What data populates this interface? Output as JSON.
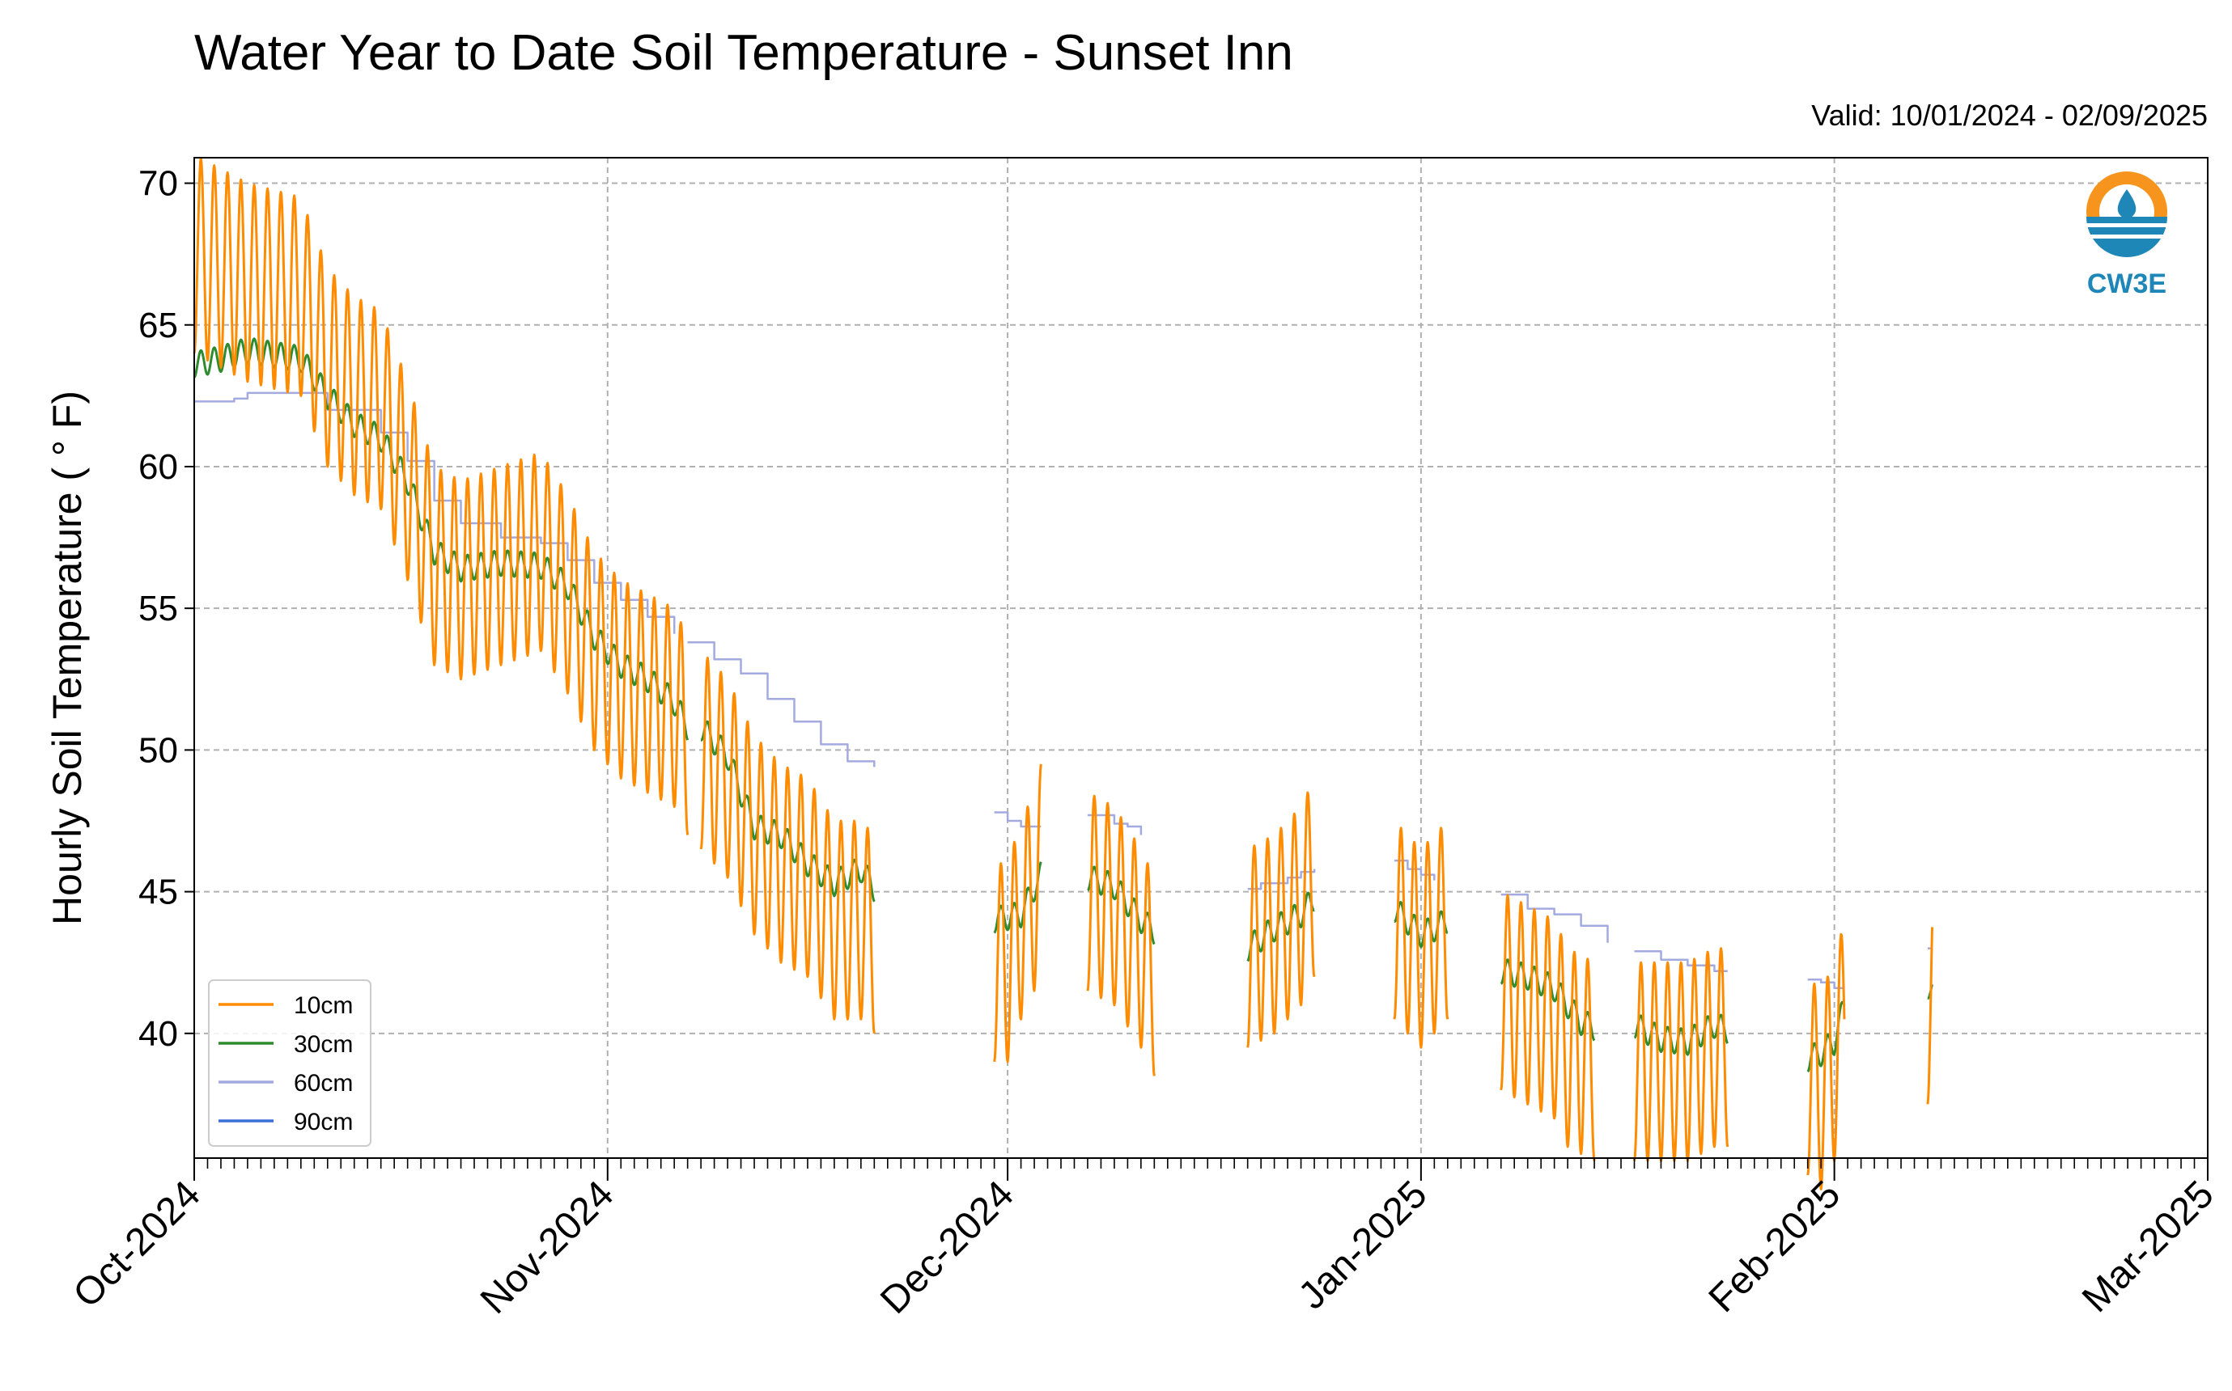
{
  "chart_data": {
    "type": "line",
    "title": "Water Year to Date Soil Temperature - Sunset Inn",
    "subtitle": "Valid: 10/01/2024 - 02/09/2025",
    "xlabel": "",
    "ylabel": "Hourly Soil Temperature ( ° F)",
    "xlim": [
      "2024-10-01",
      "2025-03-01"
    ],
    "ylim": [
      35.6,
      70.9
    ],
    "x_tick_labels": [
      {
        "date": "2024-10-01",
        "label": "Oct-2024"
      },
      {
        "date": "2024-11-01",
        "label": "Nov-2024"
      },
      {
        "date": "2024-12-01",
        "label": "Dec-2024"
      },
      {
        "date": "2025-01-01",
        "label": "Jan-2025"
      },
      {
        "date": "2025-02-01",
        "label": "Feb-2025"
      },
      {
        "date": "2025-03-01",
        "label": "Mar-2025"
      }
    ],
    "y_ticks": [
      40,
      45,
      50,
      55,
      60,
      65,
      70
    ],
    "grid": true,
    "legend_placement": "lower-left",
    "logo_text": "CW3E",
    "series": [
      {
        "name": "10cm",
        "color": "#ff8c00",
        "diurnal_amplitude": 3.5,
        "segments": [
          [
            [
              "2024-10-01",
              67.5
            ],
            [
              "2024-10-05",
              66.5
            ],
            [
              "2024-10-09",
              66.0
            ],
            [
              "2024-10-11",
              63.5
            ],
            [
              "2024-10-13",
              62.5
            ],
            [
              "2024-10-15",
              62.0
            ],
            [
              "2024-10-17",
              59.5
            ],
            [
              "2024-10-19",
              56.5
            ],
            [
              "2024-10-21",
              56.0
            ],
            [
              "2024-10-24",
              56.5
            ],
            [
              "2024-10-27",
              57.0
            ],
            [
              "2024-10-29",
              55.5
            ],
            [
              "2024-10-31",
              53.5
            ],
            [
              "2024-11-02",
              52.5
            ],
            [
              "2024-11-04",
              52.0
            ],
            [
              "2024-11-06",
              51.5
            ],
            [
              "2024-11-07",
              50.5
            ]
          ],
          [
            [
              "2024-11-08",
              50.0
            ],
            [
              "2024-11-10",
              49.0
            ],
            [
              "2024-11-12",
              47.0
            ],
            [
              "2024-11-14",
              46.0
            ],
            [
              "2024-11-16",
              45.5
            ],
            [
              "2024-11-18",
              44.0
            ],
            [
              "2024-11-20",
              44.0
            ],
            [
              "2024-11-21",
              43.5
            ]
          ],
          [
            [
              "2024-11-30",
              42.5
            ],
            [
              "2024-12-01",
              42.5
            ],
            [
              "2024-12-02",
              44.0
            ],
            [
              "2024-12-03",
              45.0
            ],
            [
              "2024-12-03 12:00",
              46.0
            ]
          ],
          [
            [
              "2024-12-07",
              45.0
            ],
            [
              "2024-12-09",
              44.5
            ],
            [
              "2024-12-11",
              43.0
            ],
            [
              "2024-12-12",
              42.0
            ]
          ],
          [
            [
              "2024-12-19",
              43.0
            ],
            [
              "2024-12-21",
              43.5
            ],
            [
              "2024-12-23",
              44.5
            ],
            [
              "2024-12-24",
              45.5
            ]
          ],
          [
            [
              "2024-12-30",
              44.0
            ],
            [
              "2024-12-31",
              43.5
            ],
            [
              "2025-01-01",
              43.0
            ],
            [
              "2025-01-02",
              43.5
            ],
            [
              "2025-01-03",
              44.0
            ]
          ],
          [
            [
              "2025-01-07",
              41.5
            ],
            [
              "2025-01-09",
              41.0
            ],
            [
              "2025-01-11",
              40.5
            ],
            [
              "2025-01-12",
              39.5
            ],
            [
              "2025-01-14",
              39.0
            ]
          ],
          [
            [
              "2025-01-17",
              39.0
            ],
            [
              "2025-01-19",
              39.0
            ],
            [
              "2025-01-21",
              39.0
            ],
            [
              "2025-01-23",
              39.5
            ],
            [
              "2025-01-24",
              39.5
            ]
          ],
          [
            [
              "2025-01-30",
              38.5
            ],
            [
              "2025-01-31",
              38.0
            ],
            [
              "2025-02-01",
              39.0
            ],
            [
              "2025-02-01 18:00",
              40.5
            ]
          ],
          [
            [
              "2025-02-08",
              41.0
            ],
            [
              "2025-02-08 08:00",
              42.0
            ]
          ]
        ]
      },
      {
        "name": "30cm",
        "color": "#2e8b2e",
        "diurnal_amplitude": 0.45,
        "segments": [
          [
            [
              "2024-10-01",
              63.6
            ],
            [
              "2024-10-03",
              63.8
            ],
            [
              "2024-10-05",
              64.1
            ],
            [
              "2024-10-09",
              63.8
            ],
            [
              "2024-10-11",
              62.5
            ],
            [
              "2024-10-13",
              61.5
            ],
            [
              "2024-10-15",
              61.0
            ],
            [
              "2024-10-17",
              59.5
            ],
            [
              "2024-10-19",
              57.0
            ],
            [
              "2024-10-21",
              56.4
            ],
            [
              "2024-10-24",
              56.6
            ],
            [
              "2024-10-27",
              56.5
            ],
            [
              "2024-10-29",
              55.8
            ],
            [
              "2024-10-31",
              54.0
            ],
            [
              "2024-11-02",
              53.0
            ],
            [
              "2024-11-04",
              52.5
            ],
            [
              "2024-11-06",
              51.7
            ],
            [
              "2024-11-07",
              50.8
            ]
          ],
          [
            [
              "2024-11-08",
              50.8
            ],
            [
              "2024-11-10",
              49.8
            ],
            [
              "2024-11-11",
              48.5
            ],
            [
              "2024-11-12",
              47.3
            ],
            [
              "2024-11-14",
              47.0
            ],
            [
              "2024-11-16",
              46.0
            ],
            [
              "2024-11-18",
              45.3
            ],
            [
              "2024-11-20",
              45.8
            ],
            [
              "2024-11-21",
              45.1
            ]
          ],
          [
            [
              "2024-11-30",
              44.0
            ],
            [
              "2024-12-02",
              44.2
            ],
            [
              "2024-12-03 12:00",
              45.6
            ]
          ],
          [
            [
              "2024-12-07",
              45.5
            ],
            [
              "2024-12-09",
              45.2
            ],
            [
              "2024-12-11",
              44.0
            ],
            [
              "2024-12-12",
              43.6
            ]
          ],
          [
            [
              "2024-12-19",
              43.0
            ],
            [
              "2024-12-21",
              43.7
            ],
            [
              "2024-12-23",
              44.2
            ],
            [
              "2024-12-24",
              44.8
            ]
          ],
          [
            [
              "2024-12-30",
              44.4
            ],
            [
              "2025-01-01",
              43.5
            ],
            [
              "2025-01-02",
              43.7
            ],
            [
              "2025-01-03",
              44.0
            ]
          ],
          [
            [
              "2025-01-07",
              42.2
            ],
            [
              "2025-01-09",
              42.0
            ],
            [
              "2025-01-11",
              41.6
            ],
            [
              "2025-01-13",
              40.4
            ],
            [
              "2025-01-14",
              40.2
            ]
          ],
          [
            [
              "2025-01-17",
              40.3
            ],
            [
              "2025-01-19",
              39.8
            ],
            [
              "2025-01-21",
              39.7
            ],
            [
              "2025-01-23",
              40.3
            ],
            [
              "2025-01-24",
              40.1
            ]
          ],
          [
            [
              "2025-01-30",
              39.1
            ],
            [
              "2025-01-31",
              39.3
            ],
            [
              "2025-02-01",
              39.7
            ],
            [
              "2025-02-01 18:00",
              41.0
            ]
          ],
          [
            [
              "2025-02-08",
              41.7
            ],
            [
              "2025-02-08 08:00",
              41.5
            ]
          ]
        ]
      },
      {
        "name": "60cm",
        "color": "#a3aae0",
        "diurnal_amplitude": 0,
        "segments": [
          [
            [
              "2024-10-01",
              62.3
            ],
            [
              "2024-10-04",
              62.4
            ],
            [
              "2024-10-05",
              62.6
            ],
            [
              "2024-10-09",
              62.6
            ],
            [
              "2024-10-11",
              62.0
            ],
            [
              "2024-10-15",
              61.2
            ],
            [
              "2024-10-17",
              60.2
            ],
            [
              "2024-10-19",
              58.8
            ],
            [
              "2024-10-21",
              58.0
            ],
            [
              "2024-10-24",
              57.5
            ],
            [
              "2024-10-27",
              57.3
            ],
            [
              "2024-10-29",
              56.7
            ],
            [
              "2024-10-31",
              55.9
            ],
            [
              "2024-11-02",
              55.3
            ],
            [
              "2024-11-04",
              54.7
            ],
            [
              "2024-11-06",
              54.1
            ]
          ],
          [
            [
              "2024-11-07",
              53.8
            ],
            [
              "2024-11-09",
              53.2
            ],
            [
              "2024-11-11",
              52.7
            ],
            [
              "2024-11-13",
              51.8
            ],
            [
              "2024-11-15",
              51.0
            ],
            [
              "2024-11-17",
              50.2
            ],
            [
              "2024-11-19",
              49.6
            ],
            [
              "2024-11-21",
              49.4
            ]
          ],
          [
            [
              "2024-11-30",
              47.8
            ],
            [
              "2024-12-01",
              47.5
            ],
            [
              "2024-12-02",
              47.3
            ],
            [
              "2024-12-03 12:00",
              47.3
            ]
          ],
          [
            [
              "2024-12-07",
              47.7
            ],
            [
              "2024-12-09",
              47.4
            ],
            [
              "2024-12-10",
              47.3
            ],
            [
              "2024-12-11",
              47.0
            ]
          ],
          [
            [
              "2024-12-19",
              45.1
            ],
            [
              "2024-12-20",
              45.3
            ],
            [
              "2024-12-22",
              45.5
            ],
            [
              "2024-12-23",
              45.7
            ],
            [
              "2024-12-24",
              45.8
            ]
          ],
          [
            [
              "2024-12-30",
              46.1
            ],
            [
              "2024-12-31",
              45.8
            ],
            [
              "2025-01-01",
              45.6
            ],
            [
              "2025-01-02",
              45.4
            ]
          ],
          [
            [
              "2025-01-07",
              44.9
            ],
            [
              "2025-01-09",
              44.4
            ],
            [
              "2025-01-11",
              44.2
            ],
            [
              "2025-01-13",
              43.8
            ],
            [
              "2025-01-15",
              43.2
            ]
          ],
          [
            [
              "2025-01-17",
              42.9
            ],
            [
              "2025-01-19",
              42.6
            ],
            [
              "2025-01-21",
              42.4
            ],
            [
              "2025-01-23",
              42.2
            ],
            [
              "2025-01-24",
              42.2
            ]
          ],
          [
            [
              "2025-01-30",
              41.9
            ],
            [
              "2025-01-31",
              41.8
            ],
            [
              "2025-02-01",
              41.6
            ],
            [
              "2025-02-01 18:00",
              41.6
            ]
          ],
          [
            [
              "2025-02-08",
              43.0
            ],
            [
              "2025-02-08 08:00",
              43.0
            ]
          ]
        ]
      },
      {
        "name": "90cm",
        "color": "#3a6fd8",
        "diurnal_amplitude": 0,
        "segments": []
      }
    ]
  }
}
